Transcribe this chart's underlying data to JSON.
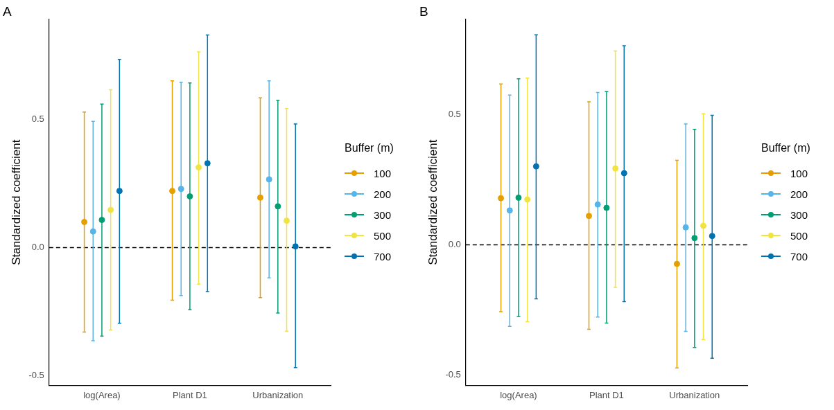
{
  "chart_data": [
    {
      "type": "scatter",
      "title": "A",
      "ylabel": "Standardized coefficient",
      "legend_title": "Buffer (m)",
      "legend": "right",
      "grid": false,
      "marker": "circle",
      "categories": [
        "log(Area)",
        "Plant D1",
        "Urbanization"
      ],
      "ylim": [
        -0.537,
        0.89
      ],
      "yticks": [
        {
          "value": -0.5,
          "label": "-0.5"
        },
        {
          "value": 0,
          "label": "0.0"
        },
        {
          "value": 0.5,
          "label": "0.5"
        }
      ],
      "ref_lines": [
        {
          "axis": "y",
          "value": 0,
          "line_style": "dashed",
          "color": "#000000"
        }
      ],
      "series": [
        {
          "name": "100",
          "color": "#e69f00",
          "values": [
            0.1,
            0.221,
            0.195
          ],
          "errors": [
            [
              -0.329,
              0.529
            ],
            [
              -0.205,
              0.65
            ],
            [
              -0.195,
              0.584
            ]
          ]
        },
        {
          "name": "200",
          "color": "#56b4e9",
          "values": [
            0.063,
            0.229,
            0.266
          ],
          "errors": [
            [
              -0.363,
              0.492
            ],
            [
              -0.187,
              0.645
            ],
            [
              -0.118,
              0.65
            ]
          ]
        },
        {
          "name": "300",
          "color": "#009e73",
          "values": [
            0.108,
            0.2,
            0.161
          ],
          "errors": [
            [
              -0.345,
              0.56
            ],
            [
              -0.242,
              0.642
            ],
            [
              -0.255,
              0.574
            ]
          ]
        },
        {
          "name": "500",
          "color": "#f0e442",
          "values": [
            0.147,
            0.313,
            0.105
          ],
          "errors": [
            [
              -0.321,
              0.616
            ],
            [
              -0.142,
              0.763
            ],
            [
              -0.326,
              0.542
            ]
          ]
        },
        {
          "name": "700",
          "color": "#0072b2",
          "values": [
            0.221,
            0.329,
            0.005
          ],
          "errors": [
            [
              -0.295,
              0.734
            ],
            [
              -0.171,
              0.829
            ],
            [
              -0.468,
              0.482
            ]
          ]
        }
      ]
    },
    {
      "type": "scatter",
      "title": "B",
      "ylabel": "Standardized coefficient",
      "legend_title": "Buffer (m)",
      "legend": "right",
      "grid": false,
      "marker": "circle",
      "categories": [
        "log(Area)",
        "Plant D1",
        "Urbanization"
      ],
      "ylim": [
        -0.539,
        0.865
      ],
      "yticks": [
        {
          "value": -0.5,
          "label": "-0.5"
        },
        {
          "value": 0,
          "label": "0.0"
        },
        {
          "value": 0.5,
          "label": "0.5"
        }
      ],
      "ref_lines": [
        {
          "axis": "y",
          "value": 0,
          "line_style": "dashed",
          "color": "#000000"
        }
      ],
      "series": [
        {
          "name": "100",
          "color": "#e69f00",
          "values": [
            0.179,
            0.111,
            -0.073
          ],
          "errors": [
            [
              -0.256,
              0.617
            ],
            [
              -0.324,
              0.549
            ],
            [
              -0.472,
              0.324
            ]
          ]
        },
        {
          "name": "200",
          "color": "#56b4e9",
          "values": [
            0.132,
            0.155,
            0.067
          ],
          "errors": [
            [
              -0.313,
              0.575
            ],
            [
              -0.277,
              0.585
            ],
            [
              -0.332,
              0.464
            ]
          ]
        },
        {
          "name": "300",
          "color": "#009e73",
          "values": [
            0.181,
            0.142,
            0.026
          ],
          "errors": [
            [
              -0.275,
              0.637
            ],
            [
              -0.3,
              0.588
            ],
            [
              -0.394,
              0.443
            ]
          ]
        },
        {
          "name": "500",
          "color": "#f0e442",
          "values": [
            0.174,
            0.293,
            0.073
          ],
          "errors": [
            [
              -0.295,
              0.64
            ],
            [
              -0.163,
              0.744
            ],
            [
              -0.363,
              0.503
            ]
          ]
        },
        {
          "name": "700",
          "color": "#0072b2",
          "values": [
            0.301,
            0.275,
            0.034
          ],
          "errors": [
            [
              -0.207,
              0.806
            ],
            [
              -0.218,
              0.764
            ],
            [
              -0.435,
              0.497
            ]
          ]
        }
      ]
    }
  ]
}
